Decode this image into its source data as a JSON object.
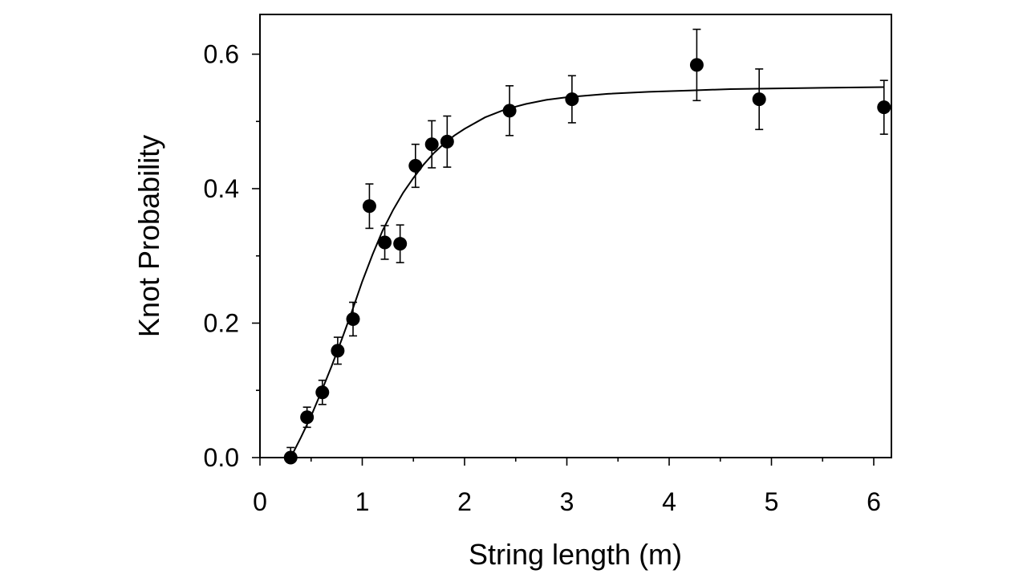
{
  "chart_data": {
    "type": "scatter",
    "title": "",
    "xlabel": "String length (m)",
    "ylabel": "Knot Probability",
    "xlim": [
      0,
      6.2
    ],
    "ylim": [
      0,
      0.66
    ],
    "x_ticks": [
      0,
      1,
      2,
      3,
      4,
      5,
      6
    ],
    "x_tick_labels": [
      "0",
      "1",
      "2",
      "3",
      "4",
      "5",
      "6"
    ],
    "y_ticks": [
      0.0,
      0.2,
      0.4,
      0.6
    ],
    "y_tick_labels": [
      "0.0",
      "0.2",
      "0.4",
      "0.6"
    ],
    "grid": false,
    "legend": "none",
    "series": [
      {
        "marker": "filled-circle",
        "color": "#000000",
        "points": [
          {
            "x": 0.3,
            "y": 0.0,
            "err": 0.015
          },
          {
            "x": 0.46,
            "y": 0.06,
            "err": 0.015
          },
          {
            "x": 0.61,
            "y": 0.097,
            "err": 0.018
          },
          {
            "x": 0.76,
            "y": 0.159,
            "err": 0.02
          },
          {
            "x": 0.91,
            "y": 0.206,
            "err": 0.025
          },
          {
            "x": 1.07,
            "y": 0.374,
            "err": 0.033
          },
          {
            "x": 1.22,
            "y": 0.32,
            "err": 0.025
          },
          {
            "x": 1.37,
            "y": 0.318,
            "err": 0.028
          },
          {
            "x": 1.52,
            "y": 0.434,
            "err": 0.032
          },
          {
            "x": 1.68,
            "y": 0.466,
            "err": 0.035
          },
          {
            "x": 1.83,
            "y": 0.47,
            "err": 0.038
          },
          {
            "x": 2.44,
            "y": 0.516,
            "err": 0.037
          },
          {
            "x": 3.05,
            "y": 0.533,
            "err": 0.035
          },
          {
            "x": 4.27,
            "y": 0.584,
            "err": 0.053
          },
          {
            "x": 4.88,
            "y": 0.533,
            "err": 0.045
          },
          {
            "x": 6.1,
            "y": 0.521,
            "err": 0.04
          }
        ]
      }
    ],
    "fit_curve": {
      "x": [
        0.3,
        0.4,
        0.5,
        0.6,
        0.7,
        0.8,
        0.9,
        1.0,
        1.1,
        1.2,
        1.3,
        1.4,
        1.5,
        1.6,
        1.7,
        1.8,
        1.9,
        2.0,
        2.2,
        2.4,
        2.6,
        2.8,
        3.0,
        3.4,
        3.8,
        4.2,
        4.6,
        5.0,
        5.5,
        6.1
      ],
      "y": [
        0.0,
        0.03,
        0.062,
        0.098,
        0.136,
        0.176,
        0.218,
        0.262,
        0.302,
        0.338,
        0.368,
        0.394,
        0.416,
        0.436,
        0.453,
        0.467,
        0.479,
        0.489,
        0.506,
        0.518,
        0.526,
        0.532,
        0.536,
        0.541,
        0.544,
        0.546,
        0.548,
        0.549,
        0.55,
        0.551
      ]
    }
  }
}
